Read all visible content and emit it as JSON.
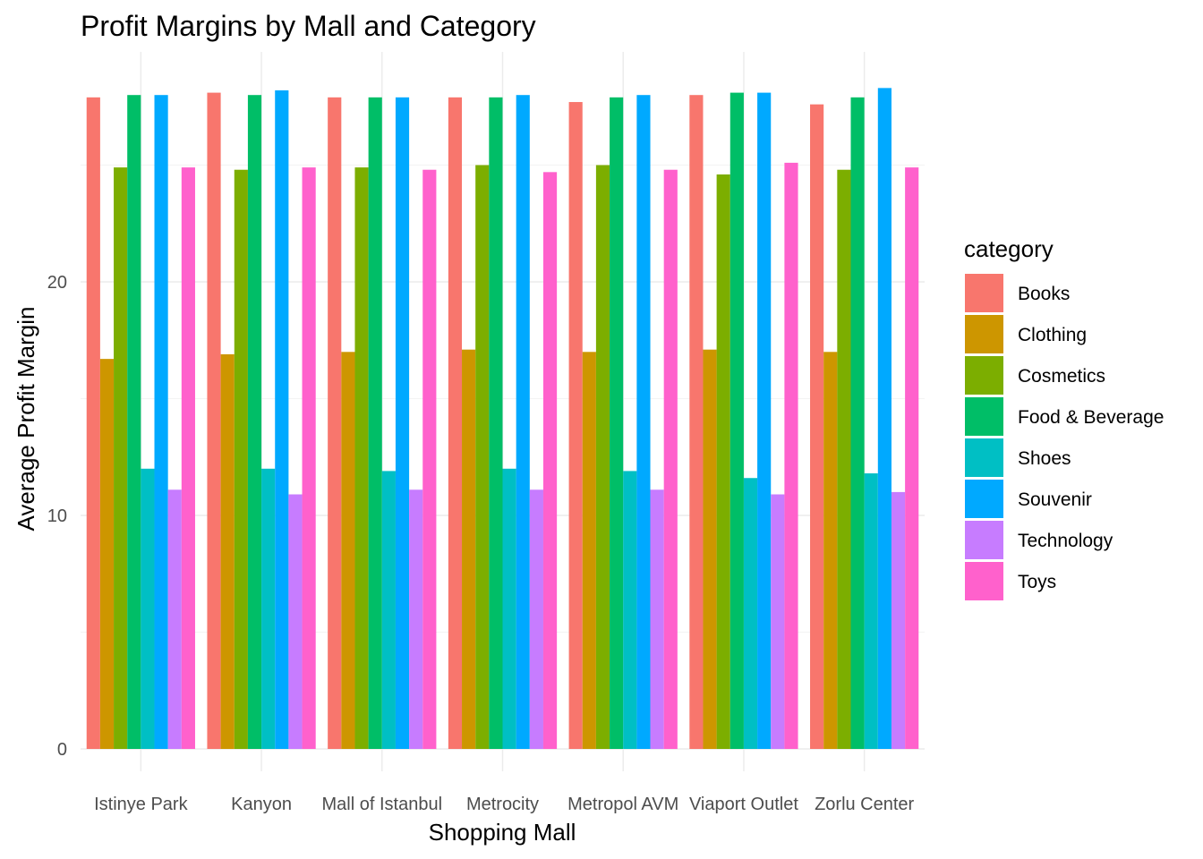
{
  "chart_data": {
    "type": "bar",
    "title": "Profit Margins by Mall and Category",
    "xlabel": "Shopping Mall",
    "ylabel": "Average Profit Margin",
    "ylim": [
      0,
      29
    ],
    "yticks": [
      0,
      10,
      20
    ],
    "grid": true,
    "legend": {
      "title": "category",
      "placement": "right"
    },
    "categories": [
      "Istinye Park",
      "Kanyon",
      "Mall of Istanbul",
      "Metrocity",
      "Metropol AVM",
      "Viaport Outlet",
      "Zorlu Center"
    ],
    "series": [
      {
        "name": "Books",
        "color": "#F8766D",
        "values": [
          27.9,
          28.1,
          27.9,
          27.9,
          27.7,
          28.0,
          27.6
        ]
      },
      {
        "name": "Clothing",
        "color": "#CD9600",
        "values": [
          16.7,
          16.9,
          17.0,
          17.1,
          17.0,
          17.1,
          17.0
        ]
      },
      {
        "name": "Cosmetics",
        "color": "#7CAE00",
        "values": [
          24.9,
          24.8,
          24.9,
          25.0,
          25.0,
          24.6,
          24.8
        ]
      },
      {
        "name": "Food & Beverage",
        "color": "#00BE67",
        "values": [
          28.0,
          28.0,
          27.9,
          27.9,
          27.9,
          28.1,
          27.9
        ]
      },
      {
        "name": "Shoes",
        "color": "#00BFC4",
        "values": [
          12.0,
          12.0,
          11.9,
          12.0,
          11.9,
          11.6,
          11.8
        ]
      },
      {
        "name": "Souvenir",
        "color": "#00A9FF",
        "values": [
          28.0,
          28.2,
          27.9,
          28.0,
          28.0,
          28.1,
          28.3
        ]
      },
      {
        "name": "Technology",
        "color": "#C77CFF",
        "values": [
          11.1,
          10.9,
          11.1,
          11.1,
          11.1,
          10.9,
          11.0
        ]
      },
      {
        "name": "Toys",
        "color": "#FF61CC",
        "values": [
          24.9,
          24.9,
          24.8,
          24.7,
          24.8,
          25.1,
          24.9
        ]
      }
    ]
  }
}
